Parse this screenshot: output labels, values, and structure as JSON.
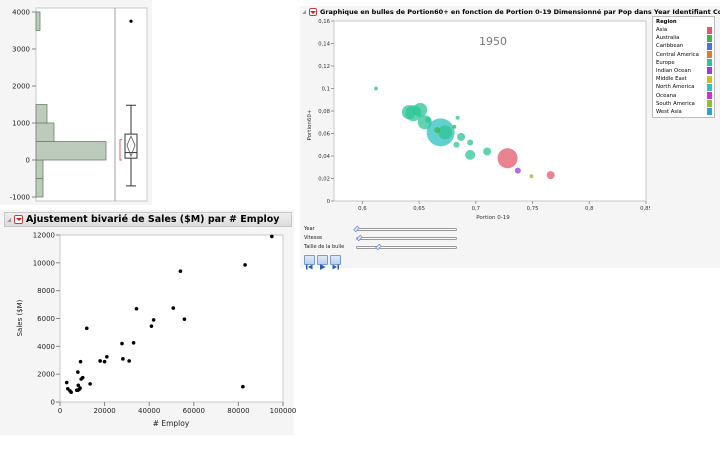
{
  "distribution_panel": {
    "y_ticks": [
      "4000",
      "3000",
      "2000",
      "1000",
      "0",
      "-1000"
    ],
    "histogram_bins": [
      {
        "from": -1000,
        "to": -500,
        "count_width": 7
      },
      {
        "from": -500,
        "to": 0,
        "count_width": 7
      },
      {
        "from": 0,
        "to": 500,
        "count_width": 70
      },
      {
        "from": 500,
        "to": 1000,
        "count_width": 18
      },
      {
        "from": 1000,
        "to": 1500,
        "count_width": 11
      },
      {
        "from": 3500,
        "to": 4000,
        "count_width": 4
      }
    ],
    "boxplot": {
      "min": -700,
      "q1": 50,
      "median": 200,
      "q3": 700,
      "max": 1480,
      "mean": 400,
      "outlier": 3750
    },
    "colors": {
      "bar_fill": "#bdcbbd",
      "bar_stroke": "#6f7f6f",
      "bracket": "#e06070"
    }
  },
  "bivariate": {
    "title": "Ajustement bivarié de Sales ($M) par # Employ",
    "xlabel": "# Employ",
    "ylabel": "Sales ($M)",
    "x_ticks": [
      "0",
      "20000",
      "40000",
      "60000",
      "80000",
      "100000"
    ],
    "y_ticks": [
      "0",
      "2000",
      "4000",
      "6000",
      "8000",
      "10000",
      "12000"
    ]
  },
  "bubble": {
    "title": "Graphique en bulles de Portion60+ en fonction de Portion 0-19 Dimensionné par Pop dans Year Identifiant Country",
    "year_label": "1950",
    "xlabel": "Portion 0-19",
    "ylabel": "Portion60+",
    "x_ticks": [
      "0,6",
      "0,65",
      "0,7",
      "0,75",
      "0,8",
      "0,85"
    ],
    "y_ticks": [
      "0",
      "0,02",
      "0,04",
      "0,06",
      "0,08",
      "0,1",
      "0,12",
      "0,14",
      "0,16"
    ],
    "legend": {
      "title": "Region",
      "items": [
        {
          "label": "Asia",
          "color": "#e05a6a"
        },
        {
          "label": "Australia",
          "color": "#3cb44b"
        },
        {
          "label": "Caribbean",
          "color": "#4a6fe0"
        },
        {
          "label": "Central America",
          "color": "#e07a30"
        },
        {
          "label": "Europe",
          "color": "#2ec495"
        },
        {
          "label": "Indian Ocean",
          "color": "#9a3ae0"
        },
        {
          "label": "Middle East",
          "color": "#c8c020"
        },
        {
          "label": "North America",
          "color": "#2fc0c0"
        },
        {
          "label": "Oceana",
          "color": "#d030d0"
        },
        {
          "label": "South America",
          "color": "#90c030"
        },
        {
          "label": "West Asia",
          "color": "#30a0d0"
        }
      ]
    },
    "controls": {
      "sliders": [
        {
          "label": "Year",
          "thumb_pct": 0
        },
        {
          "label": "Vitesse",
          "thumb_pct": 3
        },
        {
          "label": "Taille de la bulle",
          "thumb_pct": 20
        }
      ],
      "buttons": [
        "step-back",
        "play",
        "step-forward"
      ]
    }
  },
  "chart_data": [
    {
      "type": "bar",
      "title": "Distribution (histogram + box plot)",
      "orientation": "horizontal",
      "categories": [
        "-1000 to -500",
        "-500 to 0",
        "0 to 500",
        "500 to 1000",
        "1000 to 1500",
        "3500 to 4000"
      ],
      "values": [
        1,
        1,
        10,
        3,
        2,
        1
      ],
      "ylim": [
        -1000,
        4000
      ],
      "boxplot": {
        "min": -700,
        "q1": 50,
        "median": 200,
        "q3": 700,
        "max": 1480,
        "outliers": [
          3750
        ]
      }
    },
    {
      "type": "scatter",
      "title": "Ajustement bivarié de Sales ($M) par # Employ",
      "xlabel": "# Employ",
      "ylabel": "Sales ($M)",
      "xlim": [
        0,
        100000
      ],
      "ylim": [
        0,
        12000
      ],
      "x": [
        3000,
        3500,
        4500,
        5000,
        7500,
        8000,
        8200,
        8500,
        9000,
        9200,
        9500,
        10200,
        8000,
        12000,
        13500,
        18000,
        20000,
        21000,
        27800,
        28200,
        31000,
        33000,
        34300,
        41000,
        42000,
        50800,
        54000,
        55800,
        82000,
        83000,
        95000
      ],
      "y": [
        1400,
        950,
        800,
        700,
        850,
        2150,
        1200,
        900,
        1000,
        2900,
        1650,
        1750,
        850,
        5300,
        1300,
        2950,
        2900,
        3250,
        4200,
        3100,
        2950,
        4250,
        6700,
        5450,
        5900,
        6750,
        9400,
        5950,
        1100,
        9850,
        11900
      ]
    },
    {
      "type": "scatter",
      "title": "Graphique en bulles de Portion60+ en fonction de Portion 0-19 Dimensionné par Pop dans Year Identifiant Country",
      "subtitle": "1950",
      "xlabel": "Portion 0-19",
      "ylabel": "Portion60+",
      "xlim": [
        0.575,
        0.85
      ],
      "ylim": [
        0,
        0.16
      ],
      "points": [
        {
          "x": 0.612,
          "y": 0.1,
          "r": 2,
          "region": "Europe"
        },
        {
          "x": 0.641,
          "y": 0.079,
          "r": 7,
          "region": "Europe"
        },
        {
          "x": 0.645,
          "y": 0.078,
          "r": 8,
          "region": "Europe"
        },
        {
          "x": 0.651,
          "y": 0.081,
          "r": 7,
          "region": "Europe"
        },
        {
          "x": 0.655,
          "y": 0.07,
          "r": 7,
          "region": "Europe"
        },
        {
          "x": 0.658,
          "y": 0.072,
          "r": 3,
          "region": "Europe"
        },
        {
          "x": 0.669,
          "y": 0.061,
          "r": 14,
          "region": "North America"
        },
        {
          "x": 0.673,
          "y": 0.061,
          "r": 7,
          "region": "Europe"
        },
        {
          "x": 0.666,
          "y": 0.063,
          "r": 3,
          "region": "Australia"
        },
        {
          "x": 0.684,
          "y": 0.074,
          "r": 2,
          "region": "Europe"
        },
        {
          "x": 0.681,
          "y": 0.066,
          "r": 2,
          "region": "Australia"
        },
        {
          "x": 0.687,
          "y": 0.057,
          "r": 4,
          "region": "Europe"
        },
        {
          "x": 0.683,
          "y": 0.05,
          "r": 3,
          "region": "Europe"
        },
        {
          "x": 0.695,
          "y": 0.052,
          "r": 3,
          "region": "Europe"
        },
        {
          "x": 0.695,
          "y": 0.041,
          "r": 5,
          "region": "Europe"
        },
        {
          "x": 0.71,
          "y": 0.044,
          "r": 4,
          "region": "Europe"
        },
        {
          "x": 0.728,
          "y": 0.038,
          "r": 10,
          "region": "Asia"
        },
        {
          "x": 0.737,
          "y": 0.027,
          "r": 3,
          "region": "Indian Ocean"
        },
        {
          "x": 0.749,
          "y": 0.022,
          "r": 2,
          "region": "South America"
        },
        {
          "x": 0.766,
          "y": 0.023,
          "r": 4,
          "region": "Asia"
        }
      ]
    }
  ]
}
